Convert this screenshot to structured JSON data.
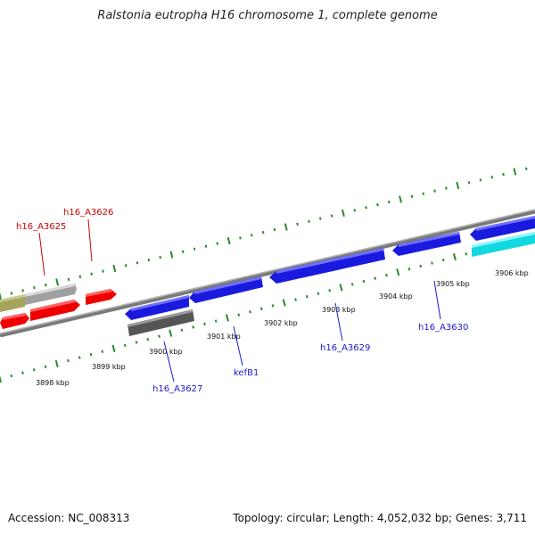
{
  "header": {
    "title": "Ralstonia eutropha H16 chromosome 1, complete genome"
  },
  "footer": {
    "accession": "Accession: NC_008313",
    "summary": "Topology: circular; Length: 4,052,032 bp; Genes: 3,711"
  },
  "colors": {
    "forward_strand": "#1a1adf",
    "reverse_strand": "#ff1a1a",
    "rna_cyan": "#18e8ee",
    "gray_feature": "#aaaaaa",
    "dark_feature": "#555555",
    "olive_feature": "#b0b06a",
    "backbone": "#888888",
    "tick": "#2a8a2a"
  },
  "axis": {
    "ticks": [
      {
        "label": "3898 kbp"
      },
      {
        "label": "3899 kbp"
      },
      {
        "label": "3900 kbp"
      },
      {
        "label": "3901 kbp"
      },
      {
        "label": "3902 kbp"
      },
      {
        "label": "3903 kbp"
      },
      {
        "label": "3904 kbp"
      },
      {
        "label": "3905 kbp"
      },
      {
        "label": "3906 kbp"
      }
    ]
  },
  "genes": {
    "outer": [
      {
        "name": "h16_A3625",
        "strand": "reverse"
      },
      {
        "name": "h16_A3626",
        "strand": "reverse"
      }
    ],
    "inner": [
      {
        "name": "h16_A3627",
        "strand": "forward"
      },
      {
        "name": "kefB1",
        "strand": "forward"
      },
      {
        "name": "h16_A3629",
        "strand": "forward"
      },
      {
        "name": "h16_A3630",
        "strand": "forward"
      }
    ]
  }
}
